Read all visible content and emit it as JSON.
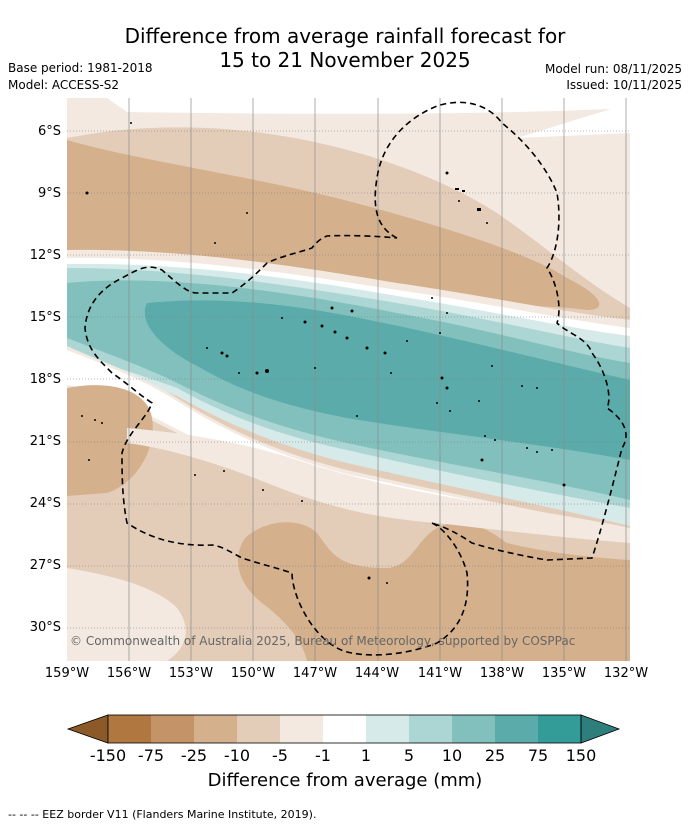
{
  "title": {
    "line1": "Difference from average rainfall forecast for",
    "line2": "15 to 21 November 2025"
  },
  "meta": {
    "base_period": "Base period: 1981-2018",
    "model": "Model: ACCESS-S2",
    "model_run": "Model run: 08/11/2025",
    "issued": "Issued: 10/11/2025"
  },
  "map": {
    "latitude_labels": [
      "6°S",
      "9°S",
      "12°S",
      "15°S",
      "18°S",
      "21°S",
      "24°S",
      "27°S",
      "30°S"
    ],
    "longitude_labels": [
      "159°W",
      "156°W",
      "153°W",
      "150°W",
      "147°W",
      "144°W",
      "141°W",
      "138°W",
      "135°W",
      "132°W"
    ],
    "credit": "© Commonwealth of Australia 2025, Bureau of Meteorology, supported by COSPPac"
  },
  "colorbar": {
    "labels": [
      "-150",
      "-75",
      "-25",
      "-10",
      "-5",
      "-1",
      "1",
      "5",
      "10",
      "25",
      "75",
      "150"
    ],
    "colors": [
      "#8c5a28",
      "#b07840",
      "#c49468",
      "#d4b08c",
      "#e3cdb8",
      "#f3e9e1",
      "#ffffff",
      "#d6eae9",
      "#acd6d4",
      "#82c0be",
      "#5aabaa",
      "#349c98",
      "#2e7f7b"
    ],
    "title": "Difference from average (mm)"
  },
  "footer": "--  --  -- EEZ border V11 (Flanders Marine Institute, 2019)."
}
